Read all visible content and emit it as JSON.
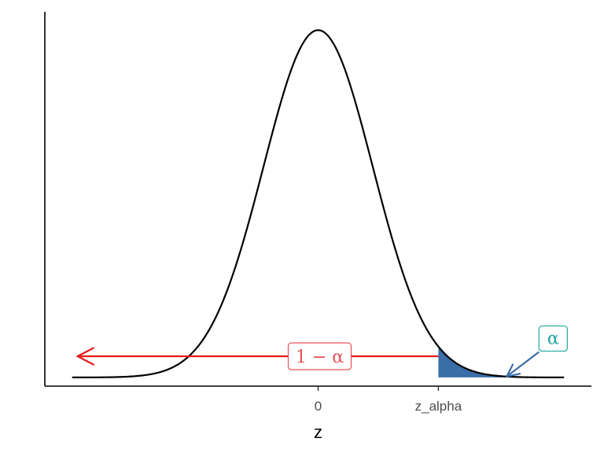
{
  "chart_data": {
    "type": "area",
    "distribution": "standard normal density",
    "x": [
      -4.5,
      -4.25,
      -4.0,
      -3.75,
      -3.5,
      -3.25,
      -3.0,
      -2.75,
      -2.5,
      -2.25,
      -2.0,
      -1.75,
      -1.5,
      -1.25,
      -1.0,
      -0.75,
      -0.5,
      -0.25,
      0.0,
      0.25,
      0.5,
      0.75,
      1.0,
      1.25,
      1.5,
      1.75,
      2.0,
      2.25,
      2.5,
      2.75,
      3.0,
      3.25,
      3.5,
      3.75,
      4.0,
      4.25,
      4.5
    ],
    "y": [
      0.0,
      0.0,
      0.0001,
      0.0004,
      0.0009,
      0.002,
      0.0044,
      0.0091,
      0.0175,
      0.0317,
      0.054,
      0.0863,
      0.1295,
      0.1826,
      0.242,
      0.3011,
      0.3521,
      0.3867,
      0.3989,
      0.3867,
      0.3521,
      0.3011,
      0.242,
      0.1826,
      0.1295,
      0.0863,
      0.054,
      0.0317,
      0.0175,
      0.0091,
      0.0044,
      0.002,
      0.0009,
      0.0004,
      0.0001,
      0.0,
      0.0
    ],
    "xlim": [
      -5.0,
      5.0
    ],
    "ylim": [
      -0.01,
      0.42
    ],
    "xlabel": "z",
    "ylabel": "",
    "x_ticks": [
      {
        "value": 0.0,
        "label": "0"
      },
      {
        "value": 2.2,
        "label": "z_alpha"
      }
    ],
    "shaded_region": {
      "from": 2.2,
      "to": 4.5,
      "color": "#3a6ea8"
    },
    "annotations": [
      {
        "name": "one-minus-alpha",
        "text": "1 − α",
        "color": "#e31a1c",
        "text_color": "#e8505a",
        "arrow_from": 2.2,
        "arrow_to": -4.4,
        "y": 0.0243
      },
      {
        "name": "alpha",
        "text": "α",
        "color": "#21a6a0",
        "arrow_color": "#3a6ea8",
        "label_x": 4.3,
        "label_y": 0.0447,
        "arrow_to_x": 3.45,
        "arrow_to_y": 0.0011
      }
    ],
    "line_color": "#000000",
    "grid": false
  }
}
